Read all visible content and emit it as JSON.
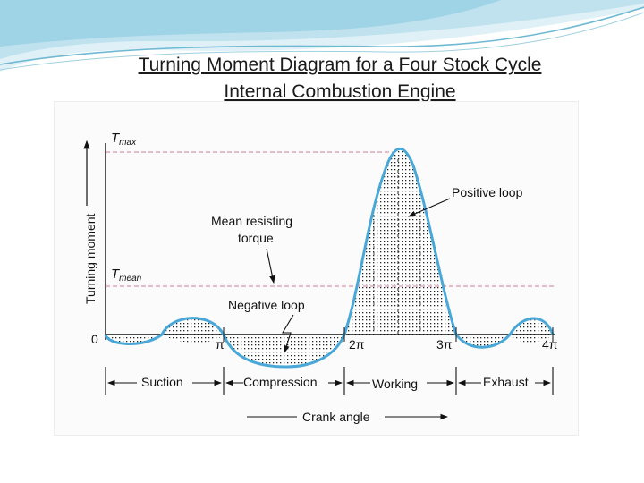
{
  "slide": {
    "title_line1": "Turning Moment Diagram for a Four Stock Cycle",
    "title_line2": "Internal Combustion Engine",
    "accent_color": "#4aa8c8"
  },
  "diagram": {
    "y_axis_label": "Turning moment",
    "x_axis_label": "Crank angle",
    "t_max": {
      "main": "T",
      "sub": "max"
    },
    "t_mean": {
      "main": "T",
      "sub": "mean"
    },
    "origin_label": "0",
    "angle_ticks": [
      "π",
      "2π",
      "3π",
      "4π"
    ],
    "annotations": {
      "positive_loop": "Positive loop",
      "mean_resisting_line1": "Mean resisting",
      "mean_resisting_line2": "torque",
      "negative_loop": "Negative loop"
    },
    "strokes": [
      "Suction",
      "Compression",
      "Working",
      "Exhaust"
    ],
    "curve_color": "#4aa8d8",
    "dashed_line_color": "#d07890"
  }
}
